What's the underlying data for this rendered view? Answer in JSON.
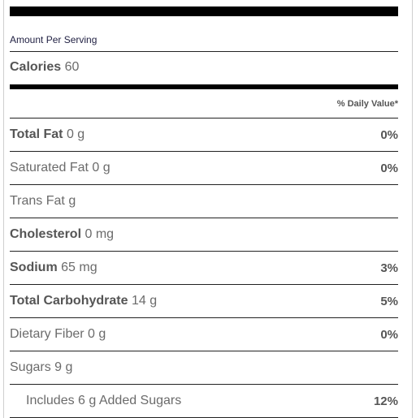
{
  "header": {
    "amount_per_serving": "Amount Per Serving",
    "calories_label": "Calories",
    "calories_value": "60",
    "daily_value_header": "% Daily Value*"
  },
  "nutrients": [
    {
      "label": "Total Fat",
      "amount": "0 g",
      "bold": true,
      "dv": "0%"
    },
    {
      "label": "Saturated Fat",
      "amount": "0 g",
      "bold": false,
      "dv": "0%"
    },
    {
      "label": "Trans Fat",
      "amount": "g",
      "bold": false,
      "dv": ""
    },
    {
      "label": "Cholesterol",
      "amount": "0 mg",
      "bold": true,
      "dv": ""
    },
    {
      "label": "Sodium",
      "amount": "65 mg",
      "bold": true,
      "dv": "3%"
    },
    {
      "label": "Total Carbohydrate",
      "amount": "14 g",
      "bold": true,
      "dv": "5%"
    },
    {
      "label": "Dietary Fiber",
      "amount": "0 g",
      "bold": false,
      "dv": "0%"
    },
    {
      "label": "Sugars",
      "amount": "9 g",
      "bold": false,
      "dv": ""
    },
    {
      "label": "Includes 6 g Added Sugars",
      "amount": "",
      "bold": false,
      "dv": "12%"
    }
  ]
}
